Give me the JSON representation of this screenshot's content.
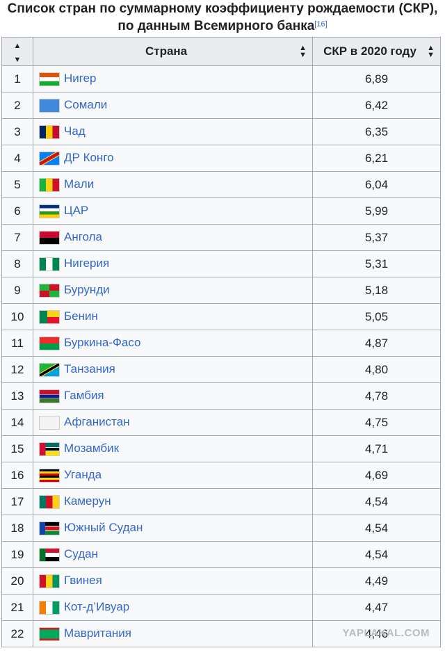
{
  "caption": {
    "line1": "Список стран по суммарному коэффициенту рождаемости (СКР),",
    "line2": "по данным Всемирного банка",
    "ref": "[16]"
  },
  "table": {
    "headers": {
      "num": "",
      "country": "Страна",
      "value": "СКР в 2020 году"
    },
    "rows": [
      {
        "num": "1",
        "country": "Нигер",
        "value": "6,89"
      },
      {
        "num": "2",
        "country": "Сомали",
        "value": "6,42"
      },
      {
        "num": "3",
        "country": "Чад",
        "value": "6,35"
      },
      {
        "num": "4",
        "country": "ДР Конго",
        "value": "6,21"
      },
      {
        "num": "5",
        "country": "Мали",
        "value": "6,04"
      },
      {
        "num": "6",
        "country": "ЦАР",
        "value": "5,99"
      },
      {
        "num": "7",
        "country": "Ангола",
        "value": "5,37"
      },
      {
        "num": "8",
        "country": "Нигерия",
        "value": "5,31"
      },
      {
        "num": "9",
        "country": "Бурунди",
        "value": "5,18"
      },
      {
        "num": "10",
        "country": "Бенин",
        "value": "5,05"
      },
      {
        "num": "11",
        "country": "Буркина-Фасо",
        "value": "4,87"
      },
      {
        "num": "12",
        "country": "Танзания",
        "value": "4,80"
      },
      {
        "num": "13",
        "country": "Гамбия",
        "value": "4,78"
      },
      {
        "num": "14",
        "country": "Афганистан",
        "value": "4,75"
      },
      {
        "num": "15",
        "country": "Мозамбик",
        "value": "4,71"
      },
      {
        "num": "16",
        "country": "Уганда",
        "value": "4,69"
      },
      {
        "num": "17",
        "country": "Камерун",
        "value": "4,54"
      },
      {
        "num": "18",
        "country": "Южный Судан",
        "value": "4,54"
      },
      {
        "num": "19",
        "country": "Судан",
        "value": "4,54"
      },
      {
        "num": "20",
        "country": "Гвинея",
        "value": "4,49"
      },
      {
        "num": "21",
        "country": "Кот-д’Ивуар",
        "value": "4,47"
      },
      {
        "num": "22",
        "country": "Мавритания",
        "value": "4,46"
      }
    ]
  },
  "watermark": "YAPLAKAL.COM"
}
